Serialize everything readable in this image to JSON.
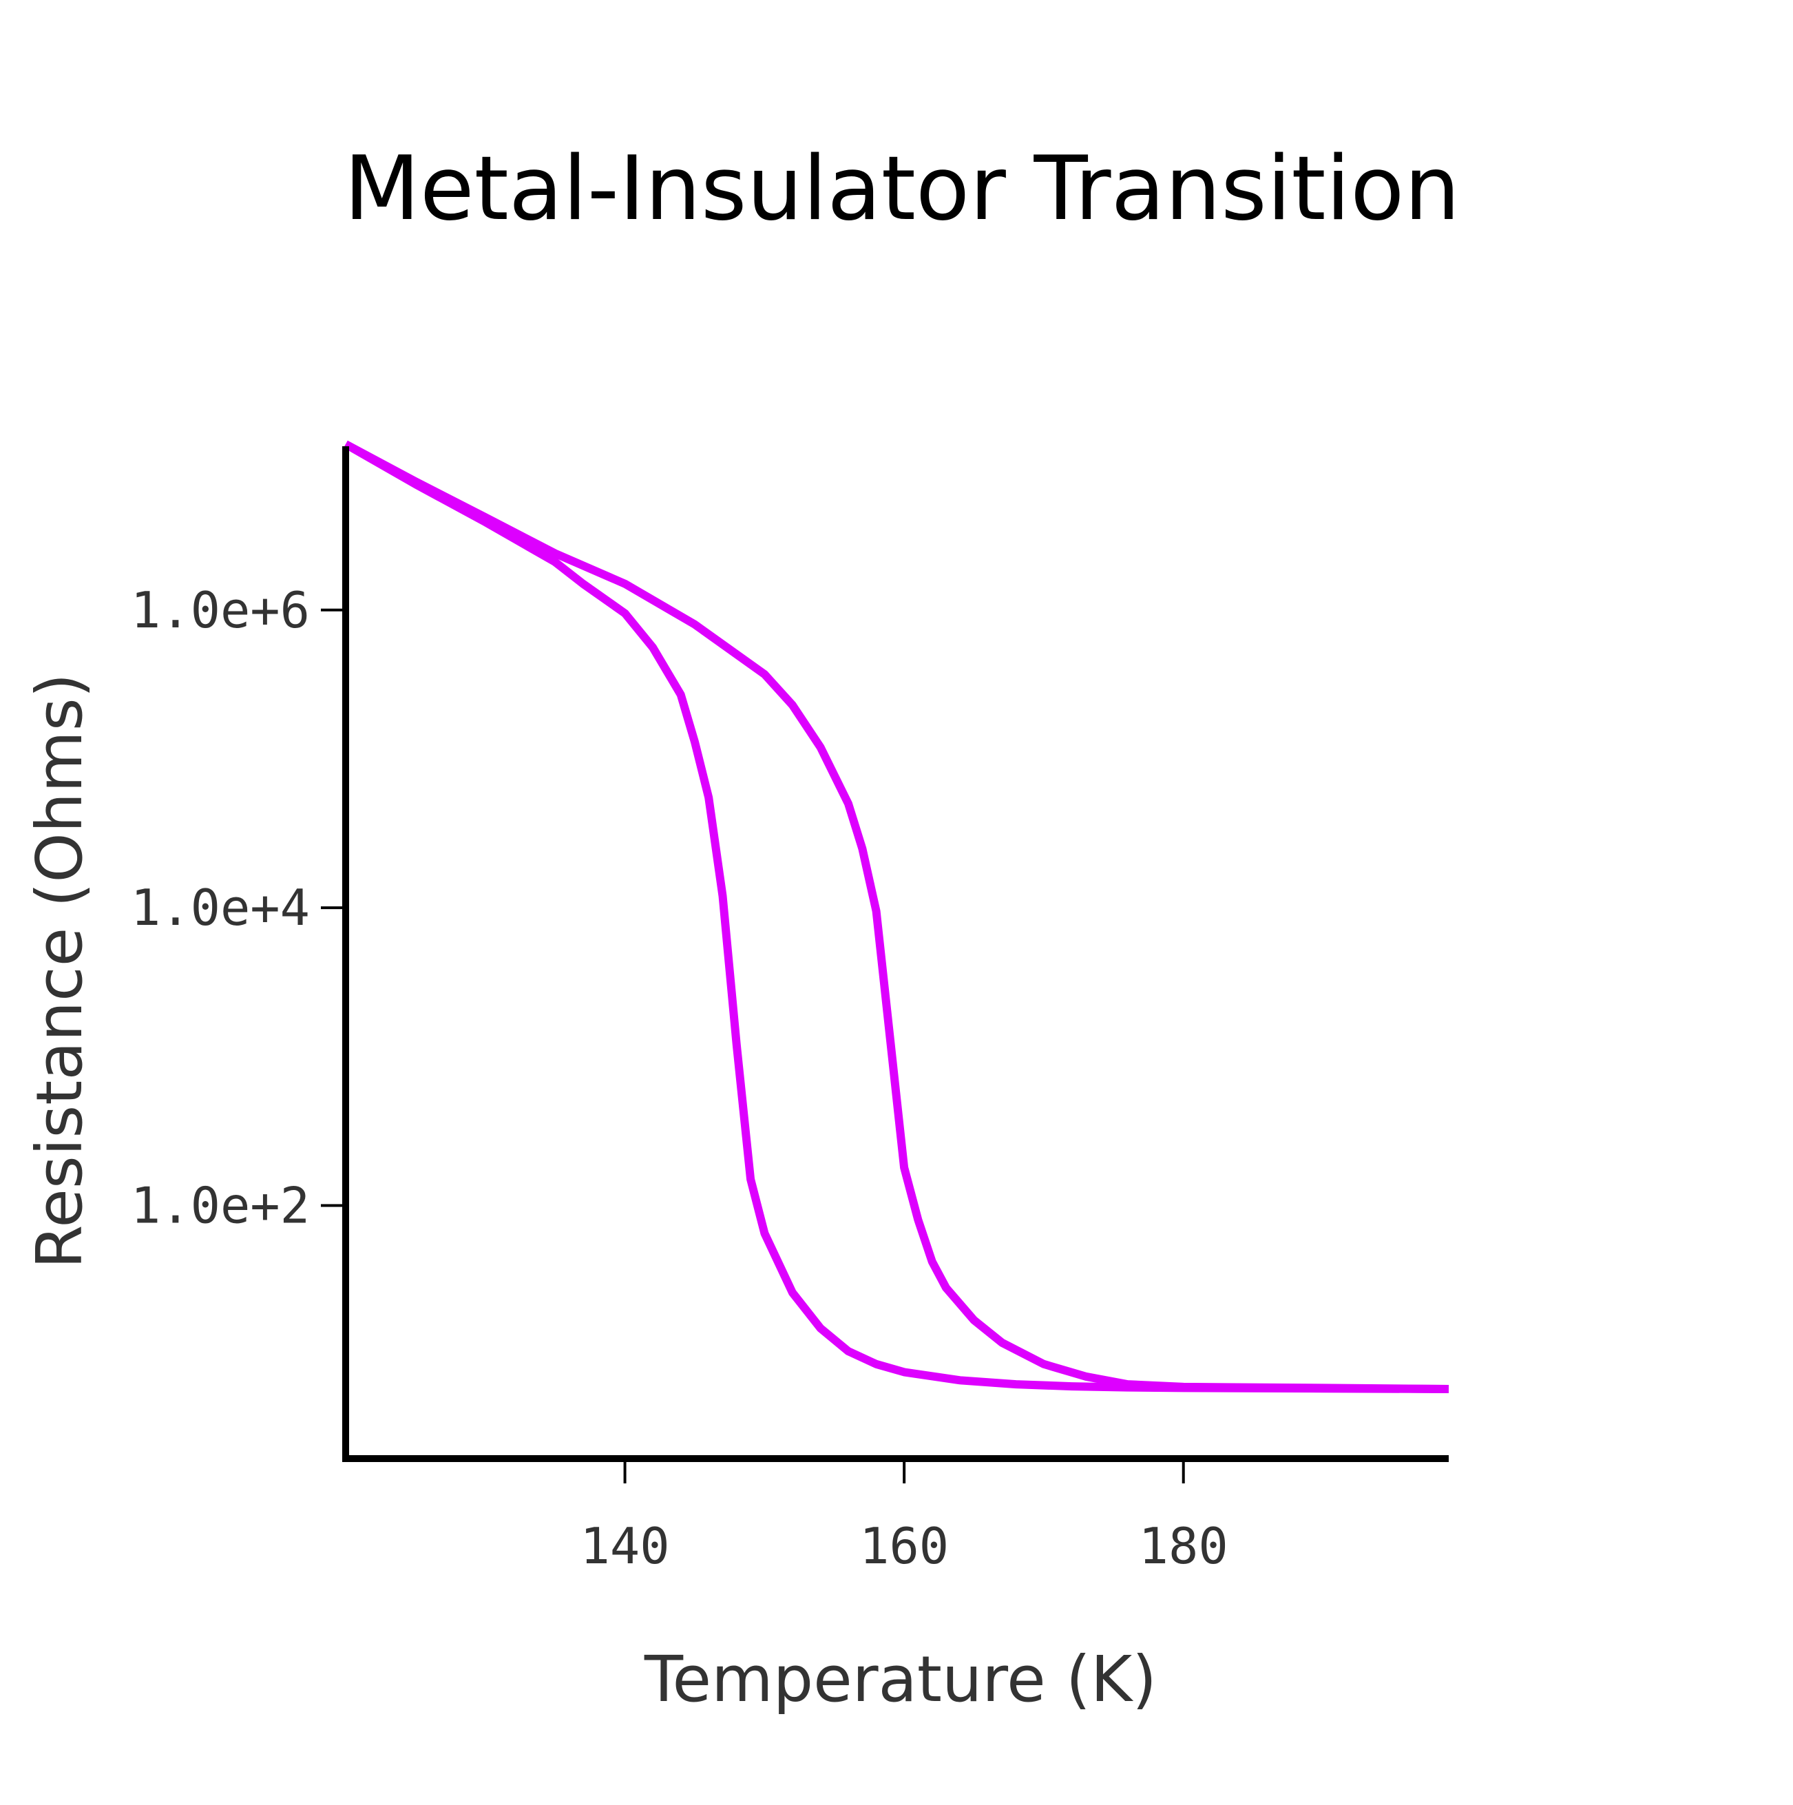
{
  "chart_data": {
    "type": "line",
    "title": "Metal-Insulator Transition",
    "xlabel": "Temperature (K)",
    "ylabel": "Resistance (Ohms)",
    "xlim": [
      120,
      199
    ],
    "ylim_log10": [
      0.3,
      7.1
    ],
    "yscale": "log",
    "grid": false,
    "legend": "none",
    "line_color": "#dd00ff",
    "x_ticks": [
      {
        "value": 140,
        "label": "140"
      },
      {
        "value": 160,
        "label": "160"
      },
      {
        "value": 180,
        "label": "180"
      }
    ],
    "y_ticks": [
      {
        "value": 1000000,
        "label": "1.0e+6"
      },
      {
        "value": 10000,
        "label": "1.0e+4"
      },
      {
        "value": 100,
        "label": "1.0e+2"
      }
    ],
    "series": [
      {
        "x": [
          120,
          125,
          130,
          135,
          137,
          140,
          142,
          144,
          145,
          146,
          147,
          148,
          149,
          150,
          152,
          154,
          156,
          158,
          160,
          164,
          168,
          172,
          176,
          180,
          190,
          199
        ],
        "y": [
          13000000,
          7000000,
          3900000,
          2100000,
          1500000,
          950000,
          560000,
          270000,
          130000,
          55000,
          12000,
          1200,
          150,
          65,
          26,
          15,
          10.5,
          8.6,
          7.6,
          6.7,
          6.3,
          6.1,
          6.0,
          5.95,
          5.9,
          5.85
        ]
      },
      {
        "x": [
          120,
          125,
          130,
          135,
          140,
          145,
          150,
          152,
          154,
          156,
          157,
          158,
          159,
          160,
          161,
          162,
          163,
          165,
          167,
          170,
          173,
          176,
          180,
          190,
          199
        ],
        "y": [
          13000000,
          7300000,
          4200000,
          2400000,
          1500000,
          800000,
          370000,
          230000,
          120000,
          50000,
          25000,
          9500,
          1300,
          180,
          80,
          42,
          28,
          17,
          12,
          8.6,
          7.1,
          6.3,
          6.05,
          5.95,
          5.85
        ]
      }
    ]
  }
}
